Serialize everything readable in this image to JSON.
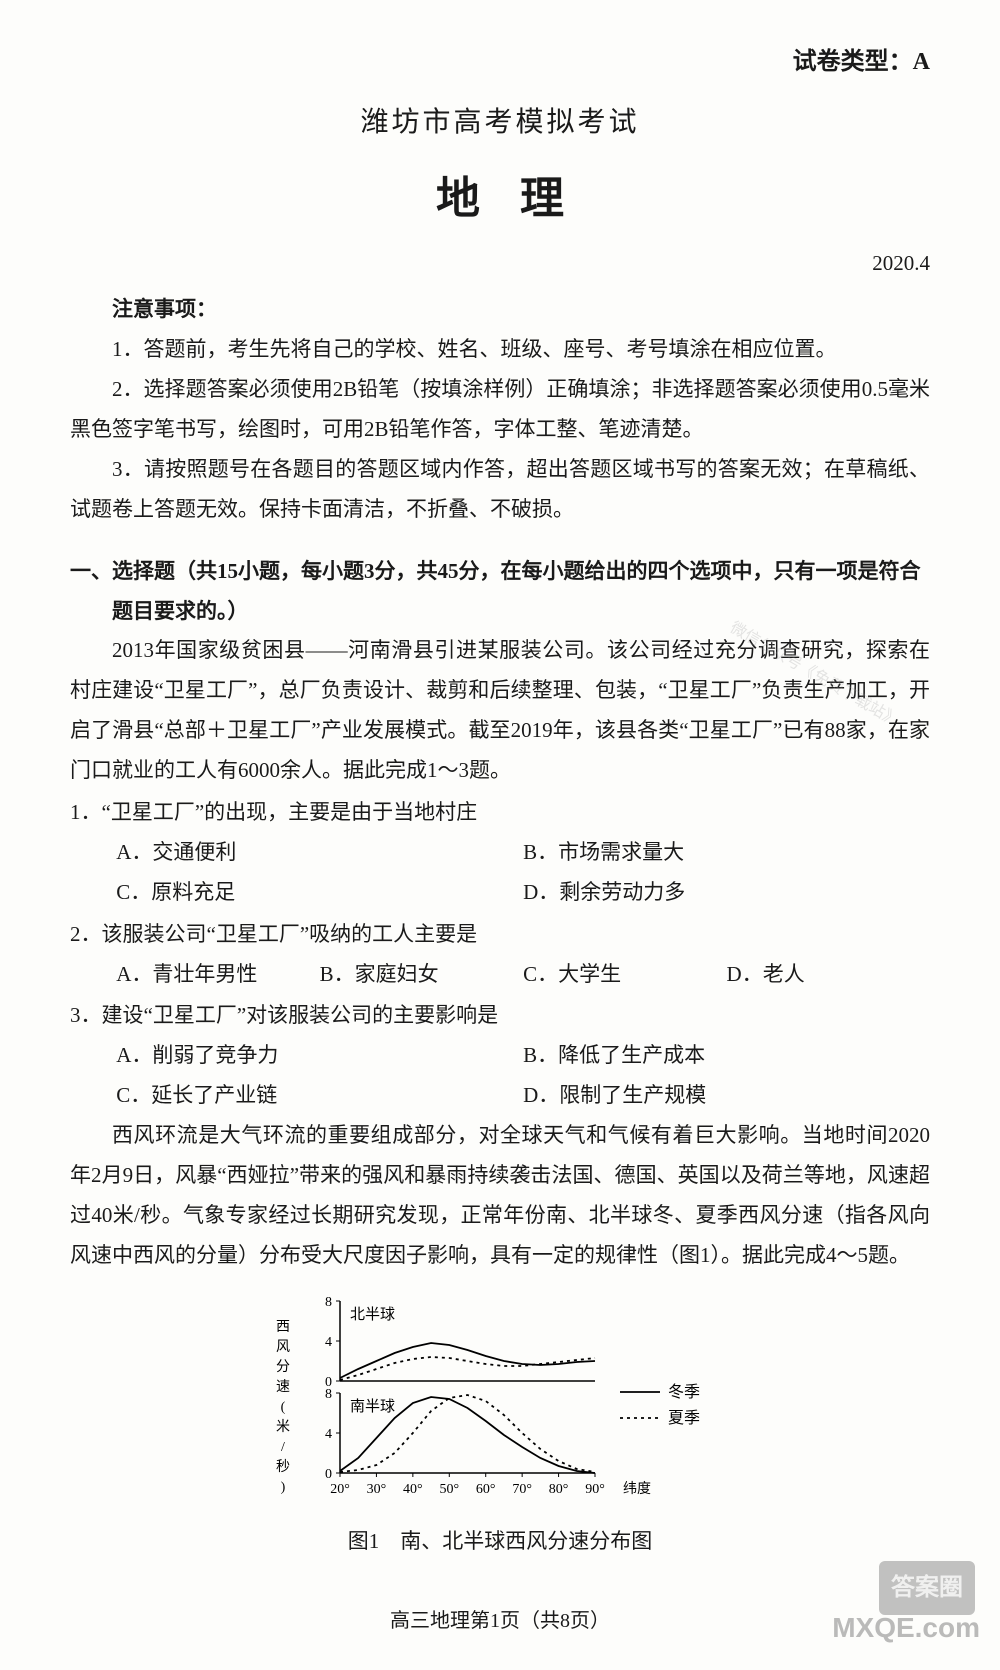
{
  "header": {
    "paper_type_label": "试卷类型：",
    "paper_type_value": "A",
    "main_title": "潍坊市高考模拟考试",
    "subject": "地理",
    "date": "2020.4"
  },
  "notice": {
    "head": "注意事项：",
    "items": [
      "1．答题前，考生先将自己的学校、姓名、班级、座号、考号填涂在相应位置。",
      "2．选择题答案必须使用2B铅笔（按填涂样例）正确填涂；非选择题答案必须使用0.5毫米黑色签字笔书写，绘图时，可用2B铅笔作答，字体工整、笔迹清楚。",
      "3．请按照题号在各题目的答题区域内作答，超出答题区域书写的答案无效；在草稿纸、试题卷上答题无效。保持卡面清洁，不折叠、不破损。"
    ]
  },
  "section1": {
    "head": "一、选择题（共15小题，每小题3分，共45分，在每小题给出的四个选项中，只有一项是符合题目要求的。）",
    "passage1": "2013年国家级贫困县——河南滑县引进某服装公司。该公司经过充分调查研究，探索在村庄建设“卫星工厂”，总厂负责设计、裁剪和后续整理、包装，“卫星工厂”负责生产加工，开启了滑县“总部＋卫星工厂”产业发展模式。截至2019年，该县各类“卫星工厂”已有88家，在家门口就业的工人有6000余人。据此完成1～3题。",
    "q1": {
      "stem": "1．“卫星工厂”的出现，主要是由于当地村庄",
      "A": "A．交通便利",
      "B": "B．市场需求量大",
      "C": "C．原料充足",
      "D": "D．剩余劳动力多"
    },
    "q2": {
      "stem": "2．该服装公司“卫星工厂”吸纳的工人主要是",
      "A": "A．青壮年男性",
      "B": "B．家庭妇女",
      "C": "C．大学生",
      "D": "D．老人"
    },
    "q3": {
      "stem": "3．建设“卫星工厂”对该服装公司的主要影响是",
      "A": "A．削弱了竞争力",
      "B": "B．降低了生产成本",
      "C": "C．延长了产业链",
      "D": "D．限制了生产规模"
    },
    "passage2": "西风环流是大气环流的重要组成部分，对全球天气和气候有着巨大影响。当地时间2020年2月9日，风暴“西娅拉”带来的强风和暴雨持续袭击法国、德国、英国以及荷兰等地，风速超过40米/秒。气象专家经过长期研究发现，正常年份南、北半球冬、夏季西风分速（指各风向风速中西风的分量）分布受大尺度因子影响，具有一定的规律性（图1）。据此完成4～5题。"
  },
  "figure1": {
    "type": "line",
    "caption": "图1　南、北半球西风分速分布图",
    "y_label": "西风分速(米/秒)",
    "x_label_suffix": "纬度",
    "panels": [
      {
        "title": "北半球",
        "ylim": [
          0,
          8
        ],
        "yticks": [
          0,
          4,
          8
        ],
        "series": {
          "winter": {
            "x": [
              20,
              25,
              30,
              35,
              40,
              45,
              50,
              55,
              60,
              65,
              70,
              75,
              80,
              85,
              90
            ],
            "y": [
              0.3,
              1.2,
              2.0,
              2.8,
              3.4,
              3.8,
              3.6,
              3.1,
              2.5,
              2.0,
              1.7,
              1.6,
              1.7,
              1.9,
              2.0
            ]
          },
          "summer": {
            "x": [
              20,
              25,
              30,
              35,
              40,
              45,
              50,
              55,
              60,
              65,
              70,
              75,
              80,
              85,
              90
            ],
            "y": [
              0.1,
              0.6,
              1.2,
              1.8,
              2.2,
              2.4,
              2.3,
              2.0,
              1.7,
              1.5,
              1.5,
              1.7,
              1.9,
              2.1,
              2.3
            ]
          }
        }
      },
      {
        "title": "南半球",
        "ylim": [
          0,
          8
        ],
        "yticks": [
          0,
          4,
          8
        ],
        "series": {
          "winter": {
            "x": [
              20,
              25,
              30,
              35,
              40,
              45,
              50,
              55,
              60,
              65,
              70,
              75,
              80,
              85,
              90
            ],
            "y": [
              0.2,
              1.5,
              3.5,
              5.5,
              7.0,
              7.6,
              7.4,
              6.5,
              5.2,
              3.8,
              2.6,
              1.5,
              0.7,
              0.2,
              0.0
            ]
          },
          "summer": {
            "x": [
              20,
              25,
              30,
              35,
              40,
              45,
              50,
              55,
              60,
              65,
              70,
              75,
              80,
              85,
              90
            ],
            "y": [
              0.1,
              0.3,
              0.8,
              2.0,
              4.0,
              6.2,
              7.5,
              7.8,
              7.2,
              5.8,
              4.0,
              2.4,
              1.2,
              0.4,
              0.1
            ]
          }
        }
      }
    ],
    "xticks": [
      20,
      30,
      40,
      50,
      60,
      70,
      80,
      90
    ],
    "xtick_labels": [
      "20°",
      "30°",
      "40°",
      "50°",
      "60°",
      "70°",
      "80°",
      "90°"
    ],
    "legend": {
      "winter": "冬季",
      "summer": "夏季"
    },
    "colors": {
      "axis": "#000000",
      "line": "#000000",
      "background": "#fdfdfb",
      "legend_text": "#000000"
    },
    "line_width": 1.8,
    "dash_pattern": "3,4",
    "font_size_axis": 14,
    "font_size_panel_title": 15,
    "font_size_legend": 16
  },
  "footer": {
    "text": "高三地理第1页（共8页）"
  },
  "watermarks": {
    "wm1": "微信公众号《免费下载站》",
    "wm2": "MXQE.com",
    "wm3": "答案圈"
  }
}
